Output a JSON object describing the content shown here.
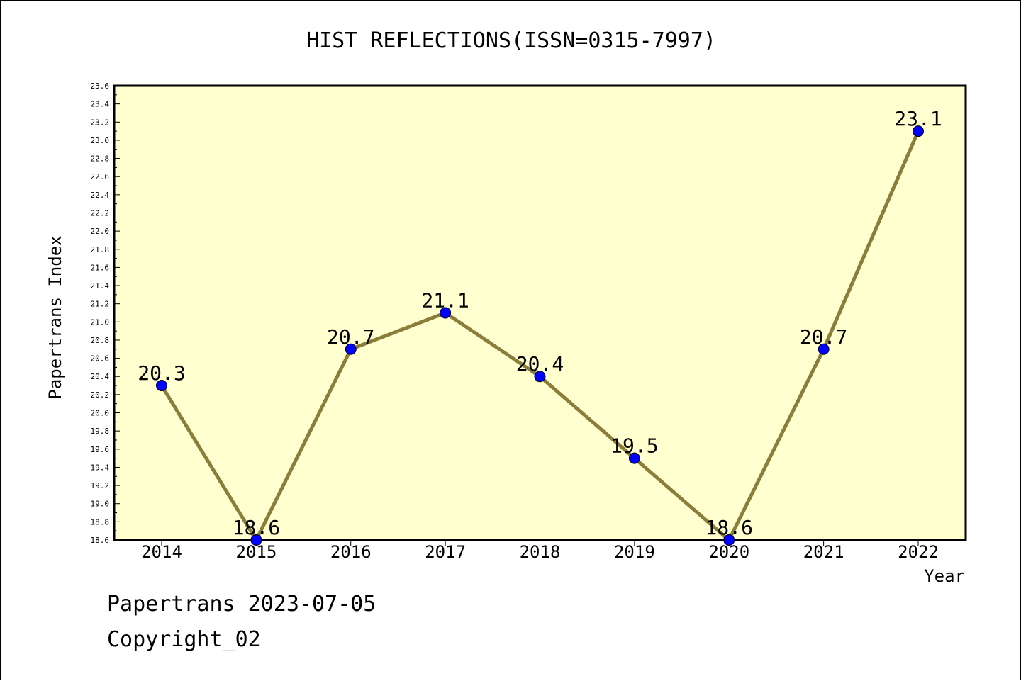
{
  "chart_data": {
    "type": "line",
    "title": "HIST REFLECTIONS(ISSN=0315-7997)",
    "xlabel": "Year",
    "ylabel": "Papertrans Index",
    "categories": [
      "2014",
      "2015",
      "2016",
      "2017",
      "2018",
      "2019",
      "2020",
      "2021",
      "2022"
    ],
    "values": [
      20.3,
      18.6,
      20.7,
      21.1,
      20.4,
      19.5,
      18.6,
      20.7,
      23.1
    ],
    "data_labels": [
      "20.3",
      "18.6",
      "20.7",
      "21.1",
      "20.4",
      "19.5",
      "18.6",
      "20.7",
      "23.1"
    ],
    "ylim": [
      18.6,
      23.6
    ],
    "yticks": [
      "18.6",
      "18.8",
      "19.0",
      "19.2",
      "19.4",
      "19.6",
      "19.8",
      "20.0",
      "20.2",
      "20.4",
      "20.6",
      "20.8",
      "21.0",
      "21.2",
      "21.4",
      "21.6",
      "21.8",
      "22.0",
      "22.2",
      "22.4",
      "22.6",
      "22.8",
      "23.0",
      "23.2",
      "23.4",
      "23.6"
    ],
    "grid": false,
    "legend": "none",
    "colors": {
      "plot_background": "#ffffd0",
      "line": "#8b7d3a",
      "marker": "#0000ff"
    }
  },
  "footer": {
    "line1": "Papertrans 2023-07-05",
    "line2": "Copyright_02"
  }
}
